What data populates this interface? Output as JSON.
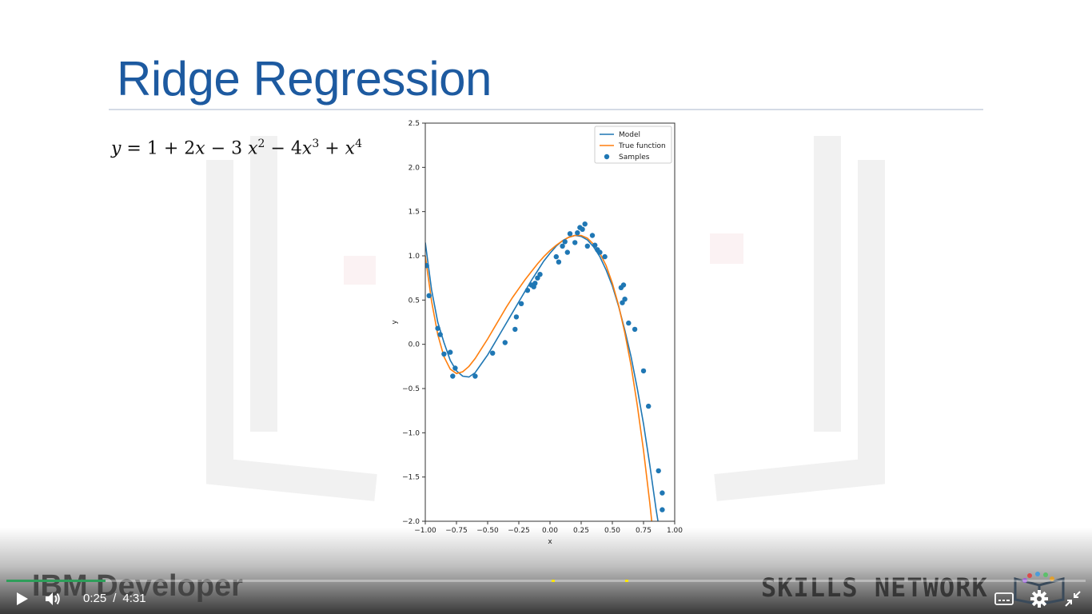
{
  "slide": {
    "title": "Ridge Regression",
    "equation": {
      "y": "y",
      "eq": " = 1 + 2",
      "x1": "x",
      "m3": " − 3 ",
      "x2": "x",
      "p2": "2",
      "m4": " − 4",
      "x3": "x",
      "p3": "3",
      "plus": " + ",
      "x4": "x",
      "p4": "4"
    }
  },
  "chart_data": {
    "type": "scatter",
    "xlabel": "x",
    "ylabel": "y",
    "xlim": [
      -1.0,
      1.0
    ],
    "ylim": [
      -2.0,
      2.5
    ],
    "xticks": [
      "−1.00",
      "−0.75",
      "−0.50",
      "−0.25",
      "0.00",
      "0.25",
      "0.50",
      "0.75",
      "1.00"
    ],
    "yticks": [
      "2.5",
      "2.0",
      "1.5",
      "1.0",
      "0.5",
      "0.0",
      "−0.5",
      "−1.0",
      "−1.5",
      "−2.0"
    ],
    "xtick_values": [
      -1.0,
      -0.75,
      -0.5,
      -0.25,
      0.0,
      0.25,
      0.5,
      0.75,
      1.0
    ],
    "ytick_values": [
      2.5,
      2.0,
      1.5,
      1.0,
      0.5,
      0.0,
      -0.5,
      -1.0,
      -1.5,
      -2.0
    ],
    "grid": false,
    "legend_position": "top-right",
    "series": [
      {
        "name": "Model",
        "kind": "line",
        "color": "#1f77b4",
        "points": [
          [
            -1.0,
            1.15
          ],
          [
            -0.95,
            0.62
          ],
          [
            -0.9,
            0.25
          ],
          [
            -0.85,
            0.02
          ],
          [
            -0.8,
            -0.18
          ],
          [
            -0.75,
            -0.3
          ],
          [
            -0.7,
            -0.36
          ],
          [
            -0.65,
            -0.37
          ],
          [
            -0.6,
            -0.32
          ],
          [
            -0.55,
            -0.22
          ],
          [
            -0.5,
            -0.12
          ],
          [
            -0.45,
            0.0
          ],
          [
            -0.4,
            0.12
          ],
          [
            -0.35,
            0.24
          ],
          [
            -0.3,
            0.36
          ],
          [
            -0.25,
            0.48
          ],
          [
            -0.2,
            0.6
          ],
          [
            -0.15,
            0.72
          ],
          [
            -0.1,
            0.83
          ],
          [
            -0.05,
            0.94
          ],
          [
            0.0,
            1.03
          ],
          [
            0.05,
            1.11
          ],
          [
            0.1,
            1.17
          ],
          [
            0.15,
            1.21
          ],
          [
            0.2,
            1.23
          ],
          [
            0.25,
            1.22
          ],
          [
            0.3,
            1.18
          ],
          [
            0.35,
            1.1
          ],
          [
            0.4,
            0.99
          ],
          [
            0.45,
            0.84
          ],
          [
            0.5,
            0.66
          ],
          [
            0.55,
            0.43
          ],
          [
            0.6,
            0.16
          ],
          [
            0.65,
            -0.14
          ],
          [
            0.7,
            -0.5
          ],
          [
            0.75,
            -0.9
          ],
          [
            0.8,
            -1.36
          ],
          [
            0.85,
            -1.86
          ],
          [
            0.9,
            -2.3
          ]
        ]
      },
      {
        "name": "True function",
        "kind": "line",
        "color": "#ff7f0e",
        "points": [
          [
            -1.0,
            1.0
          ],
          [
            -0.95,
            0.49
          ],
          [
            -0.9,
            0.11
          ],
          [
            -0.85,
            -0.14
          ],
          [
            -0.8,
            -0.28
          ],
          [
            -0.75,
            -0.33
          ],
          [
            -0.7,
            -0.31
          ],
          [
            -0.65,
            -0.25
          ],
          [
            -0.6,
            -0.16
          ],
          [
            -0.55,
            -0.05
          ],
          [
            -0.5,
            0.06
          ],
          [
            -0.45,
            0.18
          ],
          [
            -0.4,
            0.3
          ],
          [
            -0.35,
            0.42
          ],
          [
            -0.3,
            0.53
          ],
          [
            -0.25,
            0.63
          ],
          [
            -0.2,
            0.73
          ],
          [
            -0.15,
            0.82
          ],
          [
            -0.1,
            0.91
          ],
          [
            -0.05,
            0.99
          ],
          [
            0.0,
            1.06
          ],
          [
            0.05,
            1.12
          ],
          [
            0.1,
            1.17
          ],
          [
            0.15,
            1.21
          ],
          [
            0.2,
            1.23
          ],
          [
            0.25,
            1.23
          ],
          [
            0.3,
            1.2
          ],
          [
            0.35,
            1.13
          ],
          [
            0.4,
            1.03
          ],
          [
            0.45,
            0.89
          ],
          [
            0.5,
            0.69
          ],
          [
            0.55,
            0.44
          ],
          [
            0.6,
            0.13
          ],
          [
            0.65,
            -0.24
          ],
          [
            0.7,
            -0.69
          ],
          [
            0.75,
            -1.2
          ],
          [
            0.8,
            -1.79
          ],
          [
            0.85,
            -2.45
          ]
        ]
      },
      {
        "name": "Samples",
        "kind": "scatter",
        "color": "#1f77b4",
        "points": [
          [
            -0.99,
            0.89
          ],
          [
            -0.97,
            0.55
          ],
          [
            -0.9,
            0.18
          ],
          [
            -0.88,
            0.11
          ],
          [
            -0.85,
            -0.11
          ],
          [
            -0.8,
            -0.09
          ],
          [
            -0.78,
            -0.36
          ],
          [
            -0.76,
            -0.27
          ],
          [
            -0.6,
            -0.36
          ],
          [
            -0.46,
            -0.1
          ],
          [
            -0.36,
            0.02
          ],
          [
            -0.28,
            0.17
          ],
          [
            -0.27,
            0.31
          ],
          [
            -0.23,
            0.46
          ],
          [
            -0.18,
            0.61
          ],
          [
            -0.15,
            0.67
          ],
          [
            -0.13,
            0.65
          ],
          [
            -0.12,
            0.69
          ],
          [
            -0.1,
            0.75
          ],
          [
            -0.08,
            0.79
          ],
          [
            0.05,
            0.99
          ],
          [
            0.07,
            0.93
          ],
          [
            0.1,
            1.11
          ],
          [
            0.12,
            1.16
          ],
          [
            0.14,
            1.04
          ],
          [
            0.16,
            1.25
          ],
          [
            0.2,
            1.15
          ],
          [
            0.22,
            1.26
          ],
          [
            0.24,
            1.32
          ],
          [
            0.26,
            1.3
          ],
          [
            0.28,
            1.36
          ],
          [
            0.3,
            1.11
          ],
          [
            0.34,
            1.23
          ],
          [
            0.36,
            1.12
          ],
          [
            0.38,
            1.07
          ],
          [
            0.4,
            1.04
          ],
          [
            0.44,
            0.99
          ],
          [
            0.57,
            0.64
          ],
          [
            0.58,
            0.47
          ],
          [
            0.59,
            0.67
          ],
          [
            0.6,
            0.51
          ],
          [
            0.63,
            0.24
          ],
          [
            0.68,
            0.17
          ],
          [
            0.75,
            -0.3
          ],
          [
            0.79,
            -0.7
          ],
          [
            0.87,
            -1.43
          ],
          [
            0.9,
            -1.68
          ],
          [
            0.9,
            -1.87
          ]
        ]
      }
    ]
  },
  "watermarks": {
    "left": "IBM Developer",
    "right": "SKILLS NETWORK"
  },
  "player": {
    "current_time": "0:25",
    "separator": "/",
    "duration": "4:31",
    "progress": 0.092,
    "chapter_markers": [
      0.507,
      0.575
    ],
    "icons": [
      "play-icon",
      "volume-icon",
      "captions-icon",
      "settings-icon",
      "exit-fullscreen-icon"
    ],
    "colors": {
      "progress": "#2e9e5a",
      "marker": "#ffe600",
      "title": "#1d5aa0"
    }
  }
}
